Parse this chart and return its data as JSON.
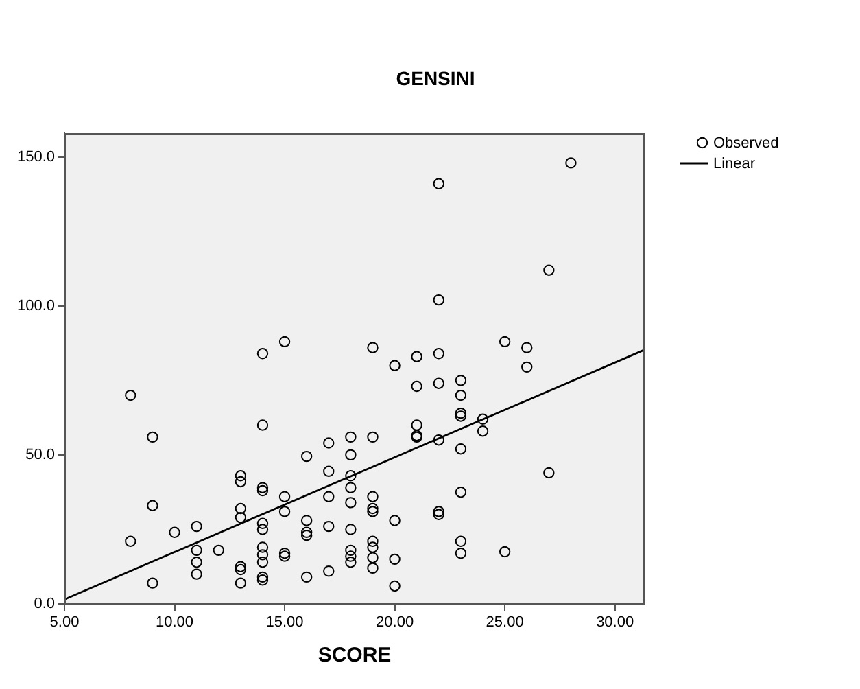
{
  "chart_data": {
    "type": "scatter",
    "title": "GENSINI",
    "xlabel": "SCORE",
    "xlim": [
      5,
      31.35
    ],
    "ylim": [
      0,
      158
    ],
    "xticks": [
      {
        "value": 5,
        "label": "5.00"
      },
      {
        "value": 10,
        "label": "10.00"
      },
      {
        "value": 15,
        "label": "15.00"
      },
      {
        "value": 20,
        "label": "20.00"
      },
      {
        "value": 25,
        "label": "25.00"
      },
      {
        "value": 30,
        "label": "30.00"
      }
    ],
    "yticks": [
      {
        "value": 0,
        "label": "0.0"
      },
      {
        "value": 50,
        "label": "50.0"
      },
      {
        "value": 100,
        "label": "100.0"
      },
      {
        "value": 150,
        "label": "150.0"
      }
    ],
    "grid": false,
    "legend": "top right",
    "marker": "circle",
    "series": [
      {
        "name": "Observed",
        "color": "#000000",
        "x": [
          8,
          8,
          9,
          9,
          9,
          10,
          11,
          11,
          11,
          11,
          12,
          13,
          13,
          13,
          13,
          13,
          13,
          13,
          14,
          14,
          14,
          14,
          14,
          14,
          14,
          14,
          14,
          14,
          14,
          15,
          15,
          15,
          15,
          15,
          16,
          16,
          16,
          16,
          16,
          17,
          17,
          17,
          17,
          17,
          18,
          18,
          18,
          18,
          18,
          18,
          18,
          18,
          18,
          19,
          19,
          19,
          19,
          19,
          19,
          19,
          19,
          19,
          20,
          20,
          20,
          20,
          21,
          21,
          21,
          21,
          21,
          22,
          22,
          22,
          22,
          22,
          22,
          22,
          23,
          23,
          23,
          23,
          23,
          23,
          23,
          23,
          24,
          24,
          25,
          25,
          26,
          26,
          27,
          27,
          28
        ],
        "values": [
          70,
          21,
          56,
          33,
          7,
          24,
          26,
          18,
          14,
          10,
          18,
          43,
          41,
          32,
          29,
          12.5,
          11.5,
          7,
          84,
          60,
          39,
          38,
          27,
          25,
          19,
          16.5,
          14,
          9,
          8,
          88,
          36,
          31,
          17,
          16,
          49.5,
          28,
          24,
          23,
          9,
          54,
          44.5,
          36,
          26,
          11,
          56,
          50,
          43,
          39,
          34,
          25,
          18,
          16,
          14,
          86,
          56,
          36,
          32,
          31,
          21,
          19,
          15.5,
          12,
          80,
          28,
          15,
          6,
          83,
          73,
          60,
          56.5,
          56,
          141,
          102,
          84,
          74,
          55,
          31,
          30,
          75,
          70,
          64,
          63,
          52,
          37.5,
          21,
          17,
          62,
          58,
          88,
          17.5,
          86,
          79.5,
          112,
          44,
          148
        ]
      },
      {
        "name": "Linear",
        "type": "line",
        "color": "#000000",
        "marker": "none",
        "x": [
          5,
          31.35
        ],
        "values": [
          1.5,
          85.3
        ]
      }
    ]
  }
}
